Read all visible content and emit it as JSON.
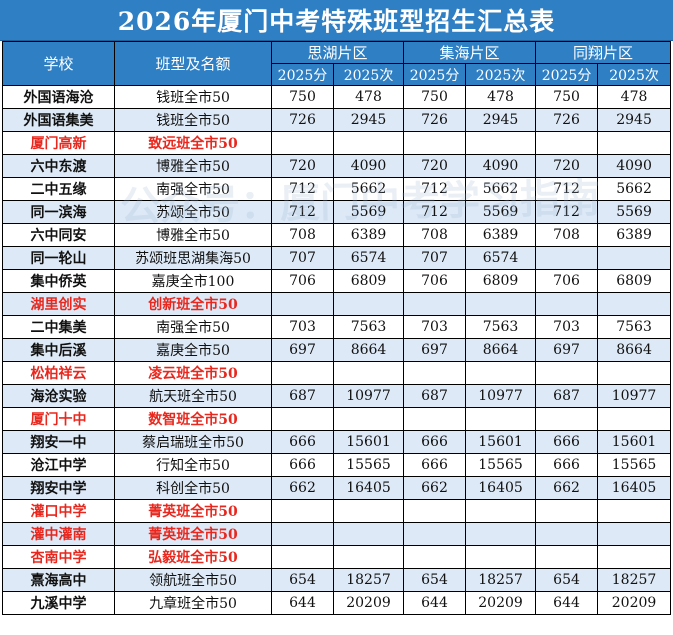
{
  "title": "2026年厦门中考特殊班型招生汇总表",
  "header": {
    "school": "学校",
    "class_quota": "班型及名额",
    "regions": [
      "思湖片区",
      "集海片区",
      "同翔片区"
    ],
    "score_label": "2025分",
    "rank_label": "2025次"
  },
  "watermark": "公众号：厦门中考学习指南",
  "colors": {
    "header_bg": "#2f7fc4",
    "row_alt": "#dde9f6",
    "red_text": "#e8281e"
  },
  "rows": [
    {
      "school": "外国语海沧",
      "class": "钱班全市50",
      "red": false,
      "cells": [
        "750",
        "478",
        "750",
        "478",
        "750",
        "478"
      ]
    },
    {
      "school": "外国语集美",
      "class": "钱班全市50",
      "red": false,
      "cells": [
        "726",
        "2945",
        "726",
        "2945",
        "726",
        "2945"
      ]
    },
    {
      "school": "厦门高新",
      "class": "致远班全市50",
      "red": true,
      "cells": [
        "",
        "",
        "",
        "",
        "",
        ""
      ]
    },
    {
      "school": "六中东渡",
      "class": "博雅全市50",
      "red": false,
      "cells": [
        "720",
        "4090",
        "720",
        "4090",
        "720",
        "4090"
      ]
    },
    {
      "school": "二中五缘",
      "class": "南强全市50",
      "red": false,
      "cells": [
        "712",
        "5662",
        "712",
        "5662",
        "712",
        "5662"
      ]
    },
    {
      "school": "同一滨海",
      "class": "苏颂全市50",
      "red": false,
      "cells": [
        "712",
        "5569",
        "712",
        "5569",
        "712",
        "5569"
      ]
    },
    {
      "school": "六中同安",
      "class": "博雅全市50",
      "red": false,
      "cells": [
        "708",
        "6389",
        "708",
        "6389",
        "708",
        "6389"
      ]
    },
    {
      "school": "同一轮山",
      "class": "苏颂班思湖集海50",
      "red": false,
      "cells": [
        "707",
        "6574",
        "707",
        "6574",
        "",
        ""
      ]
    },
    {
      "school": "集中侨英",
      "class": "嘉庚全市100",
      "red": false,
      "cells": [
        "706",
        "6809",
        "706",
        "6809",
        "706",
        "6809"
      ]
    },
    {
      "school": "湖里创实",
      "class": "创新班全市50",
      "red": true,
      "cells": [
        "",
        "",
        "",
        "",
        "",
        ""
      ]
    },
    {
      "school": "二中集美",
      "class": "南强全市50",
      "red": false,
      "cells": [
        "703",
        "7563",
        "703",
        "7563",
        "703",
        "7563"
      ]
    },
    {
      "school": "集中后溪",
      "class": "嘉庚全市50",
      "red": false,
      "cells": [
        "697",
        "8664",
        "697",
        "8664",
        "697",
        "8664"
      ]
    },
    {
      "school": "松柏祥云",
      "class": "凌云班全市50",
      "red": true,
      "cells": [
        "",
        "",
        "",
        "",
        "",
        ""
      ]
    },
    {
      "school": "海沧实验",
      "class": "航天班全市50",
      "red": false,
      "cells": [
        "687",
        "10977",
        "687",
        "10977",
        "687",
        "10977"
      ]
    },
    {
      "school": "厦门十中",
      "class": "数智班全市50",
      "red": true,
      "cells": [
        "",
        "",
        "",
        "",
        "",
        ""
      ]
    },
    {
      "school": "翔安一中",
      "class": "蔡启瑞班全市50",
      "red": false,
      "cells": [
        "666",
        "15601",
        "666",
        "15601",
        "666",
        "15601"
      ]
    },
    {
      "school": "沧江中学",
      "class": "行知全市50",
      "red": false,
      "cells": [
        "666",
        "15565",
        "666",
        "15565",
        "666",
        "15565"
      ]
    },
    {
      "school": "翔安中学",
      "class": "科创全市50",
      "red": false,
      "cells": [
        "662",
        "16405",
        "662",
        "16405",
        "662",
        "16405"
      ]
    },
    {
      "school": "灌口中学",
      "class": "菁英班全市50",
      "red": true,
      "cells": [
        "",
        "",
        "",
        "",
        "",
        ""
      ]
    },
    {
      "school": "灌中灌南",
      "class": "菁英班全市50",
      "red": true,
      "cells": [
        "",
        "",
        "",
        "",
        "",
        ""
      ]
    },
    {
      "school": "杏南中学",
      "class": "弘毅班全市50",
      "red": true,
      "cells": [
        "",
        "",
        "",
        "",
        "",
        ""
      ]
    },
    {
      "school": "熹海高中",
      "class": "领航班全市50",
      "red": false,
      "cells": [
        "654",
        "18257",
        "654",
        "18257",
        "654",
        "18257"
      ]
    },
    {
      "school": "九溪中学",
      "class": "九章班全市50",
      "red": false,
      "cells": [
        "644",
        "20209",
        "644",
        "20209",
        "644",
        "20209"
      ]
    }
  ]
}
